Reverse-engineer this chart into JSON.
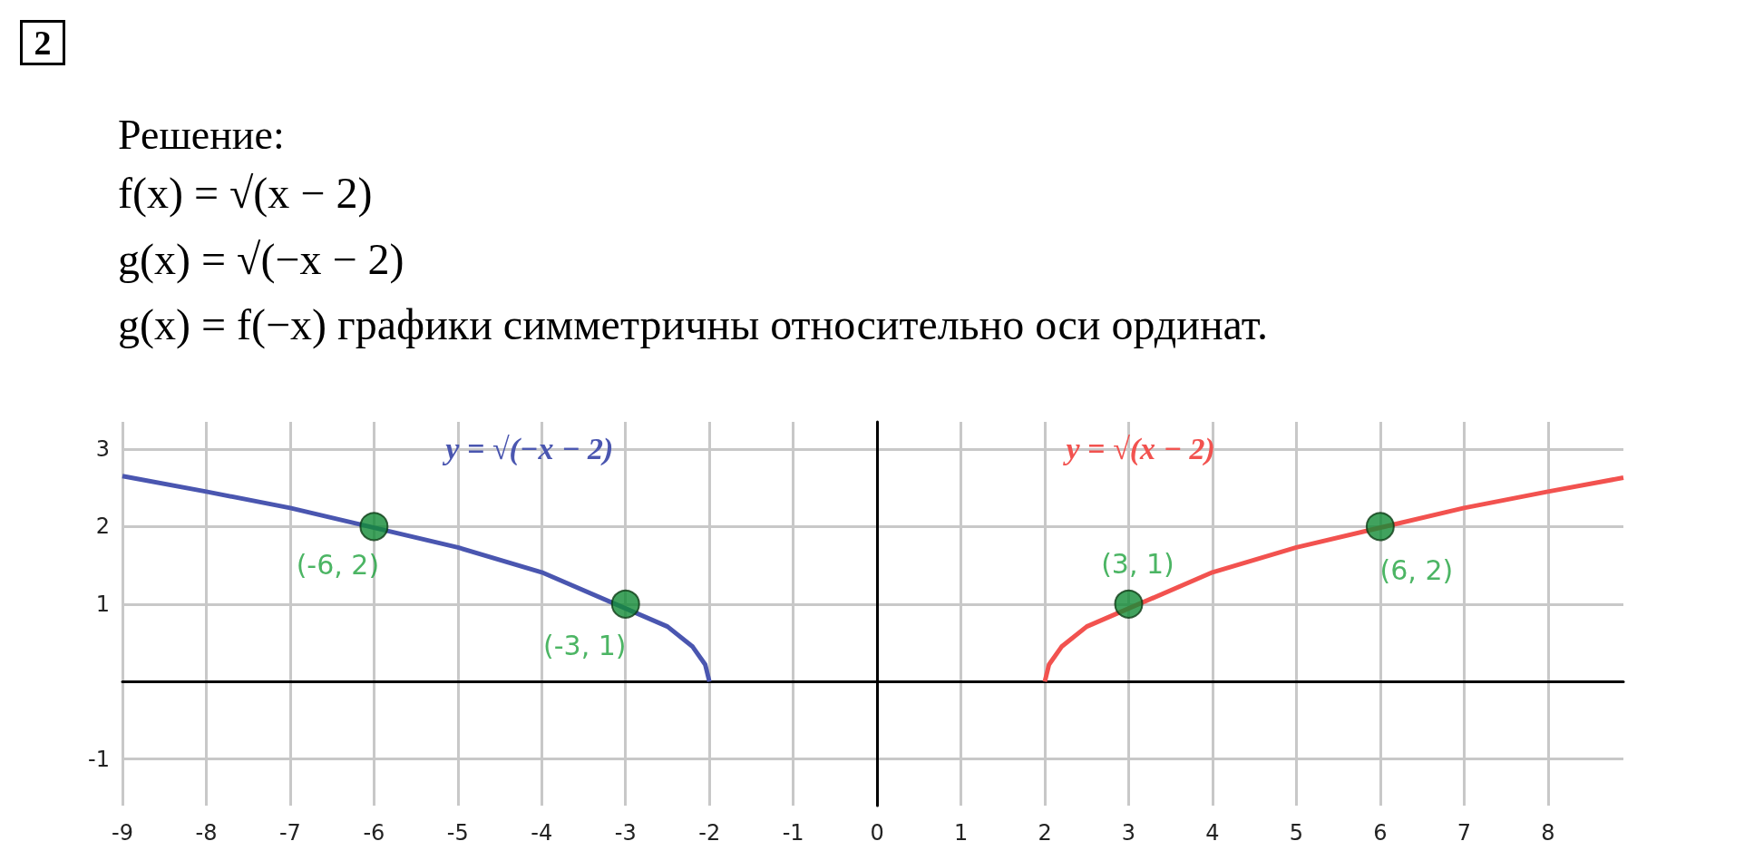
{
  "chart_data": {
    "type": "line",
    "title": "2",
    "subtitle": "Решение:",
    "annotations": [
      "f(x) = √(x − 2)",
      "g(x) = √(−x − 2)",
      "g(x) = f(−x) графики симметричны относительно оси ординат."
    ],
    "xlim": [
      -9,
      8.9
    ],
    "xticks": [
      -9,
      -8,
      -7,
      -6,
      -5,
      -4,
      -3,
      -2,
      -1,
      0,
      1,
      2,
      3,
      4,
      5,
      6,
      7,
      8
    ],
    "ylim": [
      -1.6,
      3.35
    ],
    "yticks": [
      -1,
      1,
      2,
      3
    ],
    "grid": true,
    "series": [
      {
        "name": "y = √(−x − 2)",
        "color": "#4a56b0",
        "marker": "none",
        "x": [
          -9,
          -8,
          -7,
          -5,
          -4,
          -2.5,
          -2.2,
          -2.05,
          -2
        ],
        "values": [
          2.65,
          2.45,
          2.24,
          1.73,
          1.41,
          0.71,
          0.45,
          0.22,
          0
        ]
      },
      {
        "name": "y = √(x − 2)",
        "color": "#f2524f",
        "marker": "none",
        "x": [
          2,
          2.05,
          2.2,
          2.5,
          4,
          5,
          7,
          8,
          8.9
        ],
        "values": [
          0,
          0.22,
          0.45,
          0.71,
          1.41,
          1.73,
          2.24,
          2.45,
          2.63
        ]
      },
      {
        "type": "scatter",
        "color": "#118b36",
        "marker": "circle",
        "x": [
          -6,
          -3,
          3,
          6
        ],
        "values": [
          2,
          1,
          1,
          2
        ],
        "value_labels": [
          "(-6, 2)",
          "(-3, 1)",
          "(3, 1)",
          "(6, 2)"
        ]
      }
    ]
  }
}
